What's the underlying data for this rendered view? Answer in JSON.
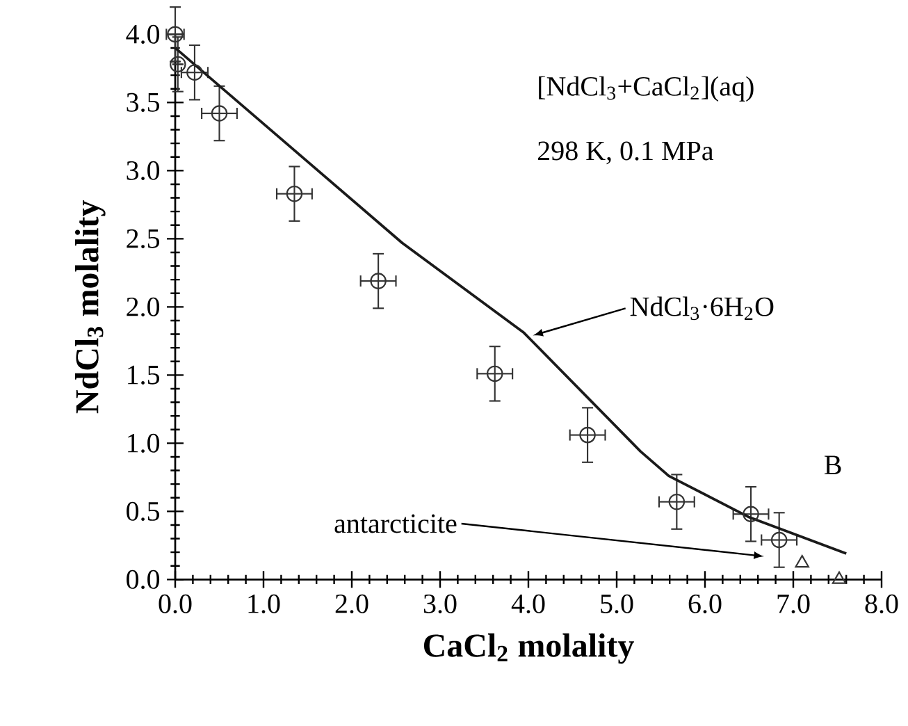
{
  "chart_data": {
    "type": "scatter",
    "xlabel": "CaCl$_{2}$ molality",
    "ylabel": "NdCl$_{3}$ molality",
    "xlim": [
      0,
      8
    ],
    "ylim": [
      0,
      4
    ],
    "xticks": [
      {
        "value": 0,
        "label": "0.0"
      },
      {
        "value": 1,
        "label": "1.0"
      },
      {
        "value": 2,
        "label": "2.0"
      },
      {
        "value": 3,
        "label": "3.0"
      },
      {
        "value": 4,
        "label": "4.0"
      },
      {
        "value": 5,
        "label": "5.0"
      },
      {
        "value": 6,
        "label": "6.0"
      },
      {
        "value": 7,
        "label": "7.0"
      },
      {
        "value": 8,
        "label": "8.0"
      }
    ],
    "yticks": [
      {
        "value": 0,
        "label": "0.0"
      },
      {
        "value": 0.5,
        "label": "0.5"
      },
      {
        "value": 1,
        "label": "1.0"
      },
      {
        "value": 1.5,
        "label": "1.5"
      },
      {
        "value": 2,
        "label": "2.0"
      },
      {
        "value": 2.5,
        "label": "2.5"
      },
      {
        "value": 3,
        "label": "3.0"
      },
      {
        "value": 3.5,
        "label": "3.5"
      },
      {
        "value": 4,
        "label": "4.0"
      }
    ],
    "series": [
      {
        "marker": "circle",
        "color": "#333333",
        "x": [
          0.0,
          0.03,
          0.22,
          0.5,
          1.35,
          2.3,
          3.62,
          4.67,
          5.68,
          6.52,
          6.84
        ],
        "values": [
          4.0,
          3.78,
          3.72,
          3.42,
          2.83,
          2.19,
          1.51,
          1.06,
          0.57,
          0.48,
          0.29
        ],
        "errors": [
          0.2,
          0.2,
          0.2,
          0.2,
          0.2,
          0.2,
          0.2,
          0.2,
          0.2,
          0.2,
          0.2
        ],
        "xerrors": [
          0.1,
          null,
          0.15,
          0.2,
          0.2,
          0.2,
          0.2,
          0.2,
          0.2,
          0.2,
          0.2
        ]
      },
      {
        "marker": "triangle",
        "color": "#333333",
        "x": [
          7.1,
          7.52
        ],
        "values": [
          0.12,
          0.0
        ]
      },
      {
        "type": "line",
        "color": "#1a1a1a",
        "x": [
          0.0,
          2.57,
          3.95,
          5.27,
          5.59,
          6.49,
          7.6
        ],
        "values": [
          3.9,
          2.47,
          1.81,
          0.94,
          0.76,
          0.46,
          0.19
        ]
      }
    ],
    "annotations": [
      "[NdCl$_{3}$+CaCl$_{2}$](aq)",
      "298 K, 0.1 MPa",
      {
        "text": "NdCl$_{3}$·6H$_{2}$O",
        "x": 4.05,
        "y": 1.79
      },
      "antarcticite",
      "B"
    ]
  }
}
